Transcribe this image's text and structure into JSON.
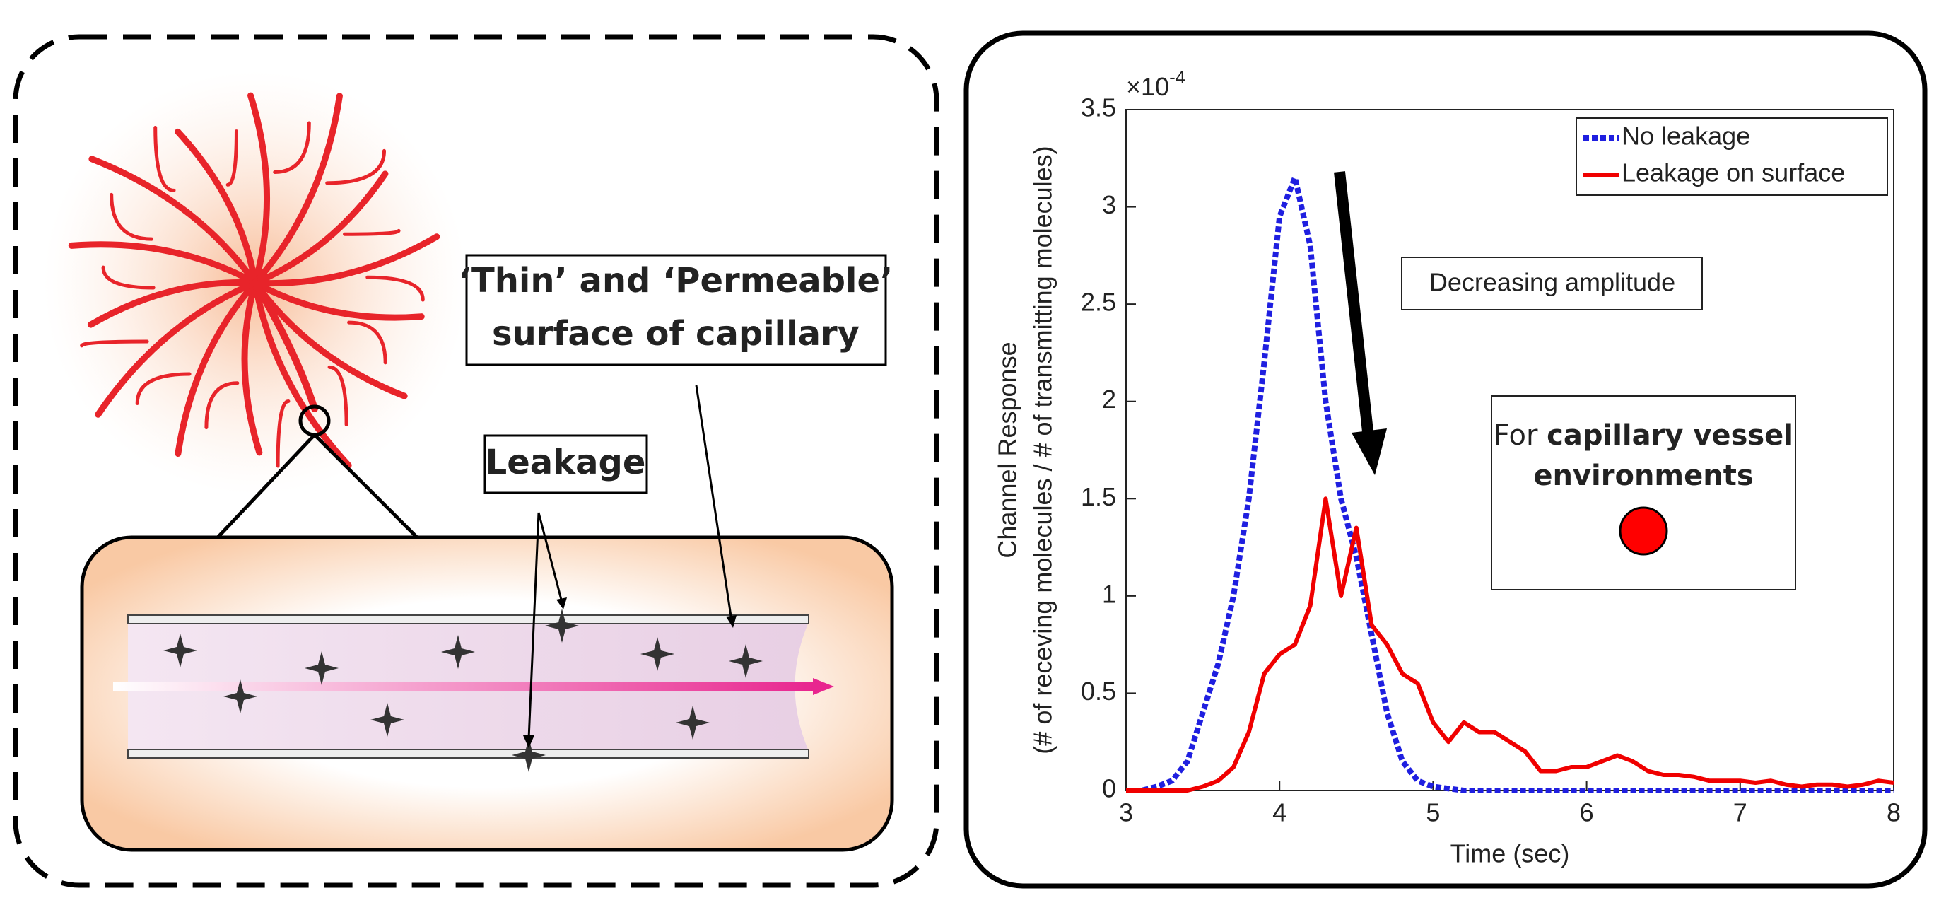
{
  "diagram": {
    "surface_label": [
      "‘Thin’ and ‘Permeable’",
      "surface of capillary"
    ],
    "leakage_label": "Leakage"
  },
  "chart_data": {
    "type": "line",
    "x": [
      3.0,
      3.1,
      3.2,
      3.3,
      3.4,
      3.5,
      3.6,
      3.7,
      3.8,
      3.9,
      4.0,
      4.1,
      4.2,
      4.3,
      4.4,
      4.5,
      4.6,
      4.7,
      4.8,
      4.9,
      5.0,
      5.1,
      5.2,
      5.3,
      5.4,
      5.5,
      5.6,
      5.7,
      5.8,
      5.9,
      6.0,
      6.1,
      6.2,
      6.3,
      6.4,
      6.5,
      6.6,
      6.7,
      6.8,
      6.9,
      7.0,
      7.1,
      7.2,
      7.3,
      7.4,
      7.5,
      7.6,
      7.7,
      7.8,
      7.9,
      8.0
    ],
    "series": [
      {
        "name": "No leakage",
        "color": "#1f1fe0",
        "style": "dotted",
        "values": [
          0,
          0,
          0.02,
          0.05,
          0.15,
          0.4,
          0.65,
          1.0,
          1.5,
          2.2,
          2.95,
          3.15,
          2.8,
          2.0,
          1.5,
          1.2,
          0.8,
          0.4,
          0.15,
          0.05,
          0.02,
          0.01,
          0,
          0,
          0,
          0,
          0,
          0,
          0,
          0,
          0,
          0,
          0,
          0,
          0,
          0,
          0,
          0,
          0,
          0,
          0,
          0,
          0,
          0,
          0,
          0,
          0,
          0,
          0,
          0,
          0
        ]
      },
      {
        "name": "Leakage on surface",
        "color": "#f00000",
        "style": "solid",
        "values": [
          0,
          0,
          0,
          0,
          0,
          0.02,
          0.05,
          0.12,
          0.3,
          0.6,
          0.7,
          0.75,
          0.95,
          1.5,
          1.0,
          1.35,
          0.85,
          0.75,
          0.6,
          0.55,
          0.35,
          0.25,
          0.35,
          0.3,
          0.3,
          0.25,
          0.2,
          0.1,
          0.1,
          0.12,
          0.12,
          0.15,
          0.18,
          0.15,
          0.1,
          0.08,
          0.08,
          0.07,
          0.05,
          0.05,
          0.05,
          0.04,
          0.05,
          0.03,
          0.02,
          0.03,
          0.03,
          0.02,
          0.03,
          0.05,
          0.04
        ]
      }
    ],
    "xlim": [
      3,
      8
    ],
    "xticks": [
      3,
      4,
      5,
      6,
      7,
      8
    ],
    "ylim": [
      0,
      3.5
    ],
    "yticks": [
      0,
      0.5,
      1,
      1.5,
      2,
      2.5,
      3,
      3.5
    ],
    "y_multiplier": {
      "base": "×10",
      "exponent": "-4"
    },
    "xlabel": "Time (sec)",
    "ylabel": [
      "Channel Response",
      "(# of receving molecules / # of transmitting molecules)"
    ],
    "annotation": "Decreasing amplitude",
    "note": {
      "normal": "For",
      "bold": [
        "capillary vessel",
        "environments"
      ]
    },
    "legend": "northeast"
  }
}
